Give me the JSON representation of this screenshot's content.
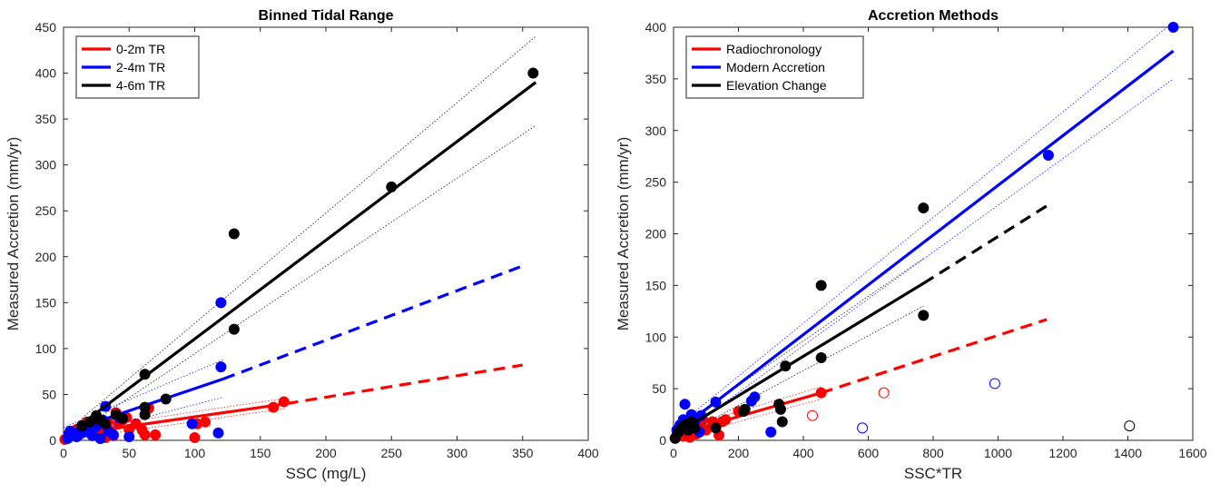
{
  "chart_data": [
    {
      "type": "scatter",
      "title": "Binned Tidal Range",
      "xlabel": "SSC (mg/L)",
      "ylabel": "Measured Accretion (mm/yr)",
      "xlim": [
        0,
        400
      ],
      "ylim": [
        0,
        450
      ],
      "xticks": [
        "0",
        "50",
        "100",
        "150",
        "200",
        "250",
        "300",
        "350",
        "400"
      ],
      "yticks": [
        "0",
        "50",
        "100",
        "150",
        "200",
        "250",
        "300",
        "350",
        "400",
        "450"
      ],
      "legend_position": "top-left",
      "series": [
        {
          "name": "0-2m TR",
          "color": "#ff0000",
          "points": [
            [
              1,
              1
            ],
            [
              4,
              3
            ],
            [
              6,
              5
            ],
            [
              8,
              8
            ],
            [
              10,
              12
            ],
            [
              12,
              6
            ],
            [
              14,
              10
            ],
            [
              16,
              15
            ],
            [
              18,
              20
            ],
            [
              20,
              8
            ],
            [
              22,
              12
            ],
            [
              24,
              16
            ],
            [
              26,
              5
            ],
            [
              28,
              22
            ],
            [
              30,
              14
            ],
            [
              32,
              3
            ],
            [
              34,
              20
            ],
            [
              36,
              10
            ],
            [
              38,
              5
            ],
            [
              40,
              30
            ],
            [
              42,
              18
            ],
            [
              45,
              22
            ],
            [
              48,
              25
            ],
            [
              50,
              12
            ],
            [
              55,
              18
            ],
            [
              60,
              11
            ],
            [
              62,
              6
            ],
            [
              65,
              35
            ],
            [
              70,
              6
            ],
            [
              100,
              3
            ],
            [
              102,
              18
            ],
            [
              108,
              20
            ],
            [
              160,
              36
            ],
            [
              168,
              42
            ]
          ],
          "fit_solid": [
            [
              0,
              5
            ],
            [
              170,
              40
            ]
          ],
          "fit_dashed": [
            [
              170,
              40
            ],
            [
              350,
              82
            ]
          ],
          "ci": [
            [
              [
                0,
                0
              ],
              [
                170,
                35
              ]
            ],
            [
              [
                0,
                10
              ],
              [
                170,
                46
              ]
            ]
          ]
        },
        {
          "name": "2-4m TR",
          "color": "#0000ff",
          "points": [
            [
              3,
              2
            ],
            [
              5,
              10
            ],
            [
              8,
              6
            ],
            [
              10,
              4
            ],
            [
              14,
              8
            ],
            [
              18,
              12
            ],
            [
              22,
              5
            ],
            [
              25,
              15
            ],
            [
              28,
              2
            ],
            [
              30,
              22
            ],
            [
              32,
              37
            ],
            [
              34,
              10
            ],
            [
              38,
              6
            ],
            [
              42,
              25
            ],
            [
              50,
              4
            ],
            [
              98,
              18
            ],
            [
              118,
              8
            ],
            [
              120,
              150
            ],
            [
              120,
              80
            ]
          ],
          "fit_solid": [
            [
              0,
              8
            ],
            [
              122,
              67
            ]
          ],
          "fit_dashed": [
            [
              122,
              67
            ],
            [
              350,
              190
            ]
          ],
          "ci": [
            [
              [
                0,
                2
              ],
              [
                122,
                47
              ]
            ],
            [
              [
                0,
                14
              ],
              [
                122,
                88
              ]
            ]
          ]
        },
        {
          "name": "4-6m TR",
          "color": "#000000",
          "points": [
            [
              14,
              16
            ],
            [
              20,
              20
            ],
            [
              25,
              27
            ],
            [
              28,
              22
            ],
            [
              32,
              18
            ],
            [
              40,
              28
            ],
            [
              45,
              24
            ],
            [
              62,
              72
            ],
            [
              62,
              36
            ],
            [
              62,
              28
            ],
            [
              78,
              45
            ],
            [
              130,
              225
            ],
            [
              130,
              121
            ],
            [
              250,
              276
            ],
            [
              358,
              400
            ]
          ],
          "fit_solid": [
            [
              14,
              18
            ],
            [
              360,
              390
            ]
          ],
          "ci": [
            [
              [
                14,
                12
              ],
              [
                360,
                343
              ]
            ],
            [
              [
                14,
                24
              ],
              [
                360,
                440
              ]
            ]
          ]
        }
      ]
    },
    {
      "type": "scatter",
      "title": "Accretion Methods",
      "xlabel": "SSC*TR",
      "ylabel": "Measured Accretion (mm/yr)",
      "xlim": [
        0,
        1600
      ],
      "ylim": [
        0,
        400
      ],
      "xticks": [
        "0",
        "200",
        "400",
        "600",
        "800",
        "1000",
        "1200",
        "1400",
        "1600"
      ],
      "yticks": [
        "0",
        "50",
        "100",
        "150",
        "200",
        "250",
        "300",
        "350",
        "400"
      ],
      "legend_position": "top-left",
      "series": [
        {
          "name": "Radiochronology",
          "color": "#ff0000",
          "points": [
            [
              5,
              2
            ],
            [
              10,
              5
            ],
            [
              20,
              8
            ],
            [
              30,
              4
            ],
            [
              40,
              12
            ],
            [
              50,
              3
            ],
            [
              60,
              10
            ],
            [
              70,
              6
            ],
            [
              80,
              15
            ],
            [
              90,
              20
            ],
            [
              100,
              10
            ],
            [
              120,
              18
            ],
            [
              140,
              5
            ],
            [
              150,
              18
            ],
            [
              160,
              20
            ],
            [
              200,
              28
            ],
            [
              455,
              46
            ]
          ],
          "open_points": [
            [
              428,
              24
            ],
            [
              648,
              46
            ]
          ],
          "fit_solid": [
            [
              0,
              5
            ],
            [
              455,
              46
            ]
          ],
          "fit_dashed": [
            [
              455,
              46
            ],
            [
              1150,
              117
            ]
          ],
          "ci": [
            [
              [
                0,
                1
              ],
              [
                455,
                40
              ]
            ],
            [
              [
                0,
                9
              ],
              [
                455,
                52
              ]
            ]
          ]
        },
        {
          "name": "Modern Accretion",
          "color": "#0000ff",
          "points": [
            [
              10,
              10
            ],
            [
              20,
              15
            ],
            [
              30,
              20
            ],
            [
              35,
              35
            ],
            [
              45,
              10
            ],
            [
              55,
              25
            ],
            [
              65,
              18
            ],
            [
              80,
              8
            ],
            [
              85,
              24
            ],
            [
              130,
              37
            ],
            [
              240,
              38
            ],
            [
              250,
              42
            ],
            [
              300,
              8
            ],
            [
              1155,
              276
            ],
            [
              1540,
              400
            ]
          ],
          "open_points": [
            [
              582,
              12
            ],
            [
              990,
              55
            ]
          ],
          "fit_solid": [
            [
              0,
              6
            ],
            [
              1540,
              377
            ]
          ],
          "ci": [
            [
              [
                0,
                1
              ],
              [
                1540,
                350
              ]
            ],
            [
              [
                0,
                11
              ],
              [
                1540,
                405
              ]
            ]
          ]
        },
        {
          "name": "Elevation Change",
          "color": "#000000",
          "points": [
            [
              5,
              2
            ],
            [
              15,
              8
            ],
            [
              25,
              12
            ],
            [
              35,
              15
            ],
            [
              45,
              10
            ],
            [
              55,
              18
            ],
            [
              65,
              12
            ],
            [
              130,
              12
            ],
            [
              215,
              28
            ],
            [
              220,
              30
            ],
            [
              325,
              35
            ],
            [
              330,
              30
            ],
            [
              335,
              18
            ],
            [
              345,
              72
            ],
            [
              455,
              80
            ],
            [
              455,
              150
            ],
            [
              770,
              225
            ],
            [
              770,
              121
            ]
          ],
          "open_points": [
            [
              1405,
              14
            ]
          ],
          "fit_solid": [
            [
              0,
              5
            ],
            [
              770,
              152
            ]
          ],
          "fit_dashed": [
            [
              770,
              152
            ],
            [
              1150,
              227
            ]
          ],
          "ci": [
            [
              [
                0,
                0
              ],
              [
                770,
                130
              ]
            ],
            [
              [
                0,
                10
              ],
              [
                770,
                176
              ]
            ]
          ]
        }
      ]
    }
  ]
}
